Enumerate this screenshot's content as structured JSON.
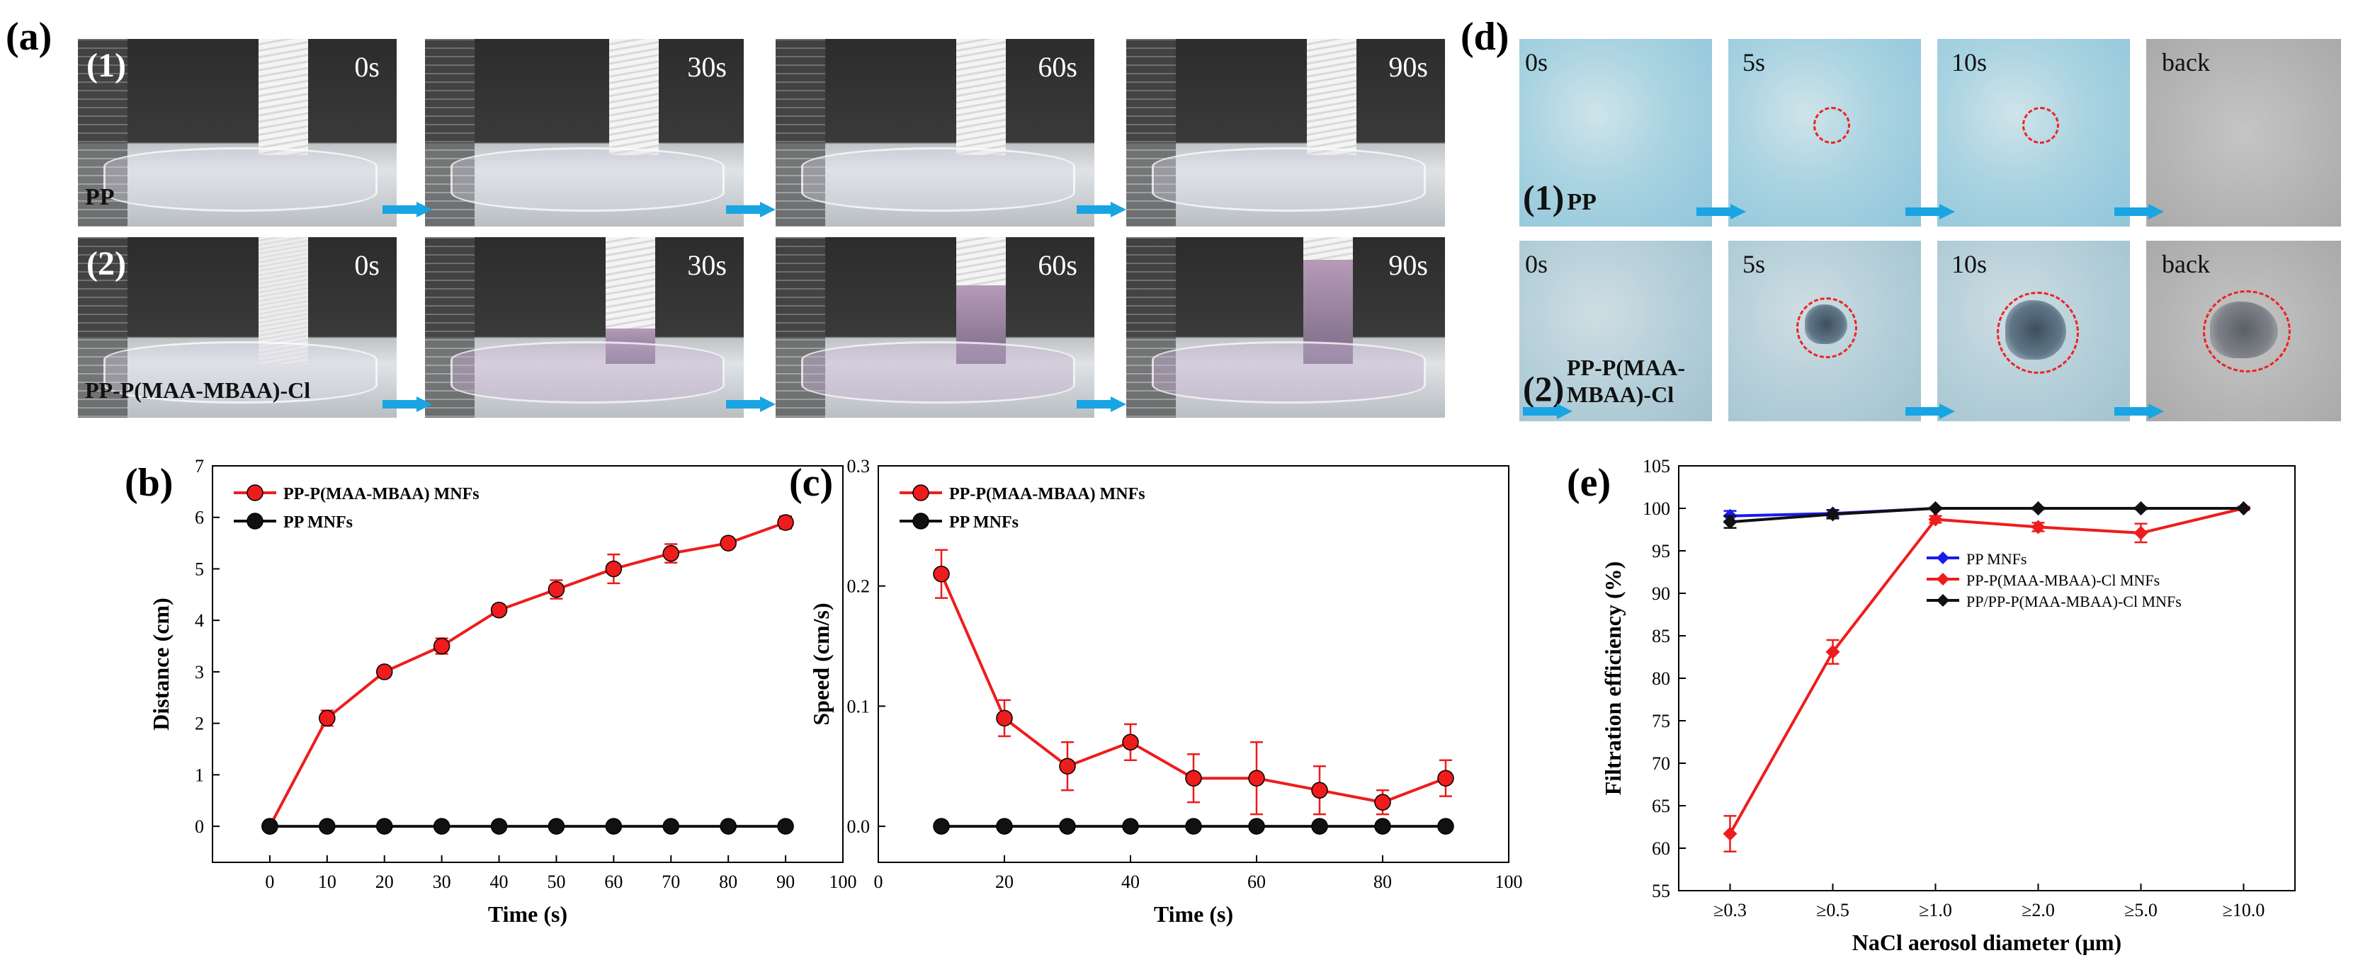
{
  "panels": {
    "a": "(a)",
    "b": "(b)",
    "c": "(c)",
    "d": "(d)",
    "e": "(e)"
  },
  "panel_a": {
    "rows": [
      {
        "index": "(1)",
        "sample": "PP",
        "times": [
          "0s",
          "30s",
          "60s",
          "90s"
        ]
      },
      {
        "index": "(2)",
        "sample": "PP-P(MAA-MBAA)-Cl",
        "times": [
          "0s",
          "30s",
          "60s",
          "90s"
        ]
      }
    ],
    "arrow_color": "#19a4e3"
  },
  "panel_d": {
    "row1": {
      "index": "(1)",
      "sample": "PP",
      "labels": [
        "0s",
        "5s",
        "10s",
        "back"
      ]
    },
    "row2": {
      "index": "(2)",
      "sample_line1": "PP-P(MAA-",
      "sample_line2": "MBAA)-Cl",
      "labels": [
        "0s",
        "5s",
        "10s",
        "back"
      ]
    }
  },
  "chart_data": [
    {
      "id": "b",
      "type": "line",
      "xlabel": "Time (s)",
      "ylabel": "Distance (cm)",
      "xlim": [
        -10,
        100
      ],
      "ylim": [
        -0.7,
        7
      ],
      "xticks": [
        0,
        10,
        20,
        30,
        40,
        50,
        60,
        70,
        80,
        90,
        100
      ],
      "xtick_labels": [
        "0",
        "10",
        "20",
        "30",
        "40",
        "50",
        "60",
        "70",
        "80",
        "90",
        "100"
      ],
      "yticks": [
        0,
        1,
        2,
        3,
        4,
        5,
        6,
        7
      ],
      "ytick_labels": [
        "0",
        "1",
        "2",
        "3",
        "4",
        "5",
        "6",
        "7"
      ],
      "legend_position": "top-left",
      "series": [
        {
          "name": "PP-P(MAA-MBAA) MNFs",
          "color": "#ee1c1c",
          "x": [
            0,
            10,
            20,
            30,
            40,
            50,
            60,
            70,
            80,
            90
          ],
          "y": [
            0,
            2.1,
            3.0,
            3.5,
            4.2,
            4.6,
            5.0,
            5.3,
            5.5,
            5.9
          ],
          "err": [
            0,
            0.15,
            0.1,
            0.15,
            0.1,
            0.18,
            0.28,
            0.18,
            0.05,
            0.12
          ]
        },
        {
          "name": "PP MNFs",
          "color": "#111111",
          "x": [
            0,
            10,
            20,
            30,
            40,
            50,
            60,
            70,
            80,
            90
          ],
          "y": [
            0,
            0,
            0,
            0,
            0,
            0,
            0,
            0,
            0,
            0
          ],
          "err": [
            0,
            0,
            0,
            0,
            0,
            0,
            0,
            0,
            0,
            0
          ]
        }
      ]
    },
    {
      "id": "c",
      "type": "line",
      "xlabel": "Time (s)",
      "ylabel": "Speed (cm/s)",
      "xlim": [
        0,
        100
      ],
      "ylim": [
        -0.03,
        0.3
      ],
      "xticks": [
        0,
        20,
        40,
        60,
        80,
        100
      ],
      "xtick_labels": [
        "0",
        "20",
        "40",
        "60",
        "80",
        "100"
      ],
      "yticks": [
        0.0,
        0.1,
        0.2,
        0.3
      ],
      "ytick_labels": [
        "0.0",
        "0.1",
        "0.2",
        "0.3"
      ],
      "legend_position": "top-left",
      "series": [
        {
          "name": "PP-P(MAA-MBAA) MNFs",
          "color": "#ee1c1c",
          "x": [
            10,
            20,
            30,
            40,
            50,
            60,
            70,
            80,
            90
          ],
          "y": [
            0.21,
            0.09,
            0.05,
            0.07,
            0.04,
            0.04,
            0.03,
            0.02,
            0.04
          ],
          "err": [
            0.02,
            0.015,
            0.02,
            0.015,
            0.02,
            0.03,
            0.02,
            0.01,
            0.015
          ]
        },
        {
          "name": "PP MNFs",
          "color": "#111111",
          "x": [
            10,
            20,
            30,
            40,
            50,
            60,
            70,
            80,
            90
          ],
          "y": [
            0,
            0,
            0,
            0,
            0,
            0,
            0,
            0,
            0
          ],
          "err": [
            0,
            0,
            0,
            0,
            0,
            0,
            0,
            0,
            0
          ]
        }
      ]
    },
    {
      "id": "e",
      "type": "line",
      "xlabel": "NaCl aerosol diameter (μm)",
      "ylabel": "Filtration efficiency (%)",
      "categories": [
        "≥0.3",
        "≥0.5",
        "≥1.0",
        "≥2.0",
        "≥5.0",
        "≥10.0"
      ],
      "ylim": [
        55,
        105
      ],
      "yticks": [
        55,
        60,
        65,
        70,
        75,
        80,
        85,
        90,
        95,
        100,
        105
      ],
      "ytick_labels": [
        "55",
        "60",
        "65",
        "70",
        "75",
        "80",
        "85",
        "90",
        "95",
        "100",
        "105"
      ],
      "legend_position": "center-right",
      "series": [
        {
          "name": "PP MNFs",
          "color": "#1a1aee",
          "values": [
            99.1,
            99.4,
            100,
            100,
            100,
            100
          ],
          "err": [
            0.6,
            0.4,
            0.1,
            0.1,
            0.1,
            0.1
          ]
        },
        {
          "name": "PP-P(MAA-MBAA)-Cl MNFs",
          "color": "#ee1c1c",
          "values": [
            61.7,
            83.1,
            98.7,
            97.8,
            97.1,
            100
          ],
          "err": [
            2.1,
            1.4,
            0.4,
            0.5,
            1.1,
            0.2
          ]
        },
        {
          "name": "PP/PP-P(MAA-MBAA)-Cl MNFs",
          "color": "#111111",
          "values": [
            98.4,
            99.3,
            100,
            100,
            100,
            100
          ],
          "err": [
            0.7,
            0.5,
            0.1,
            0.1,
            0.1,
            0.1
          ]
        }
      ]
    }
  ]
}
